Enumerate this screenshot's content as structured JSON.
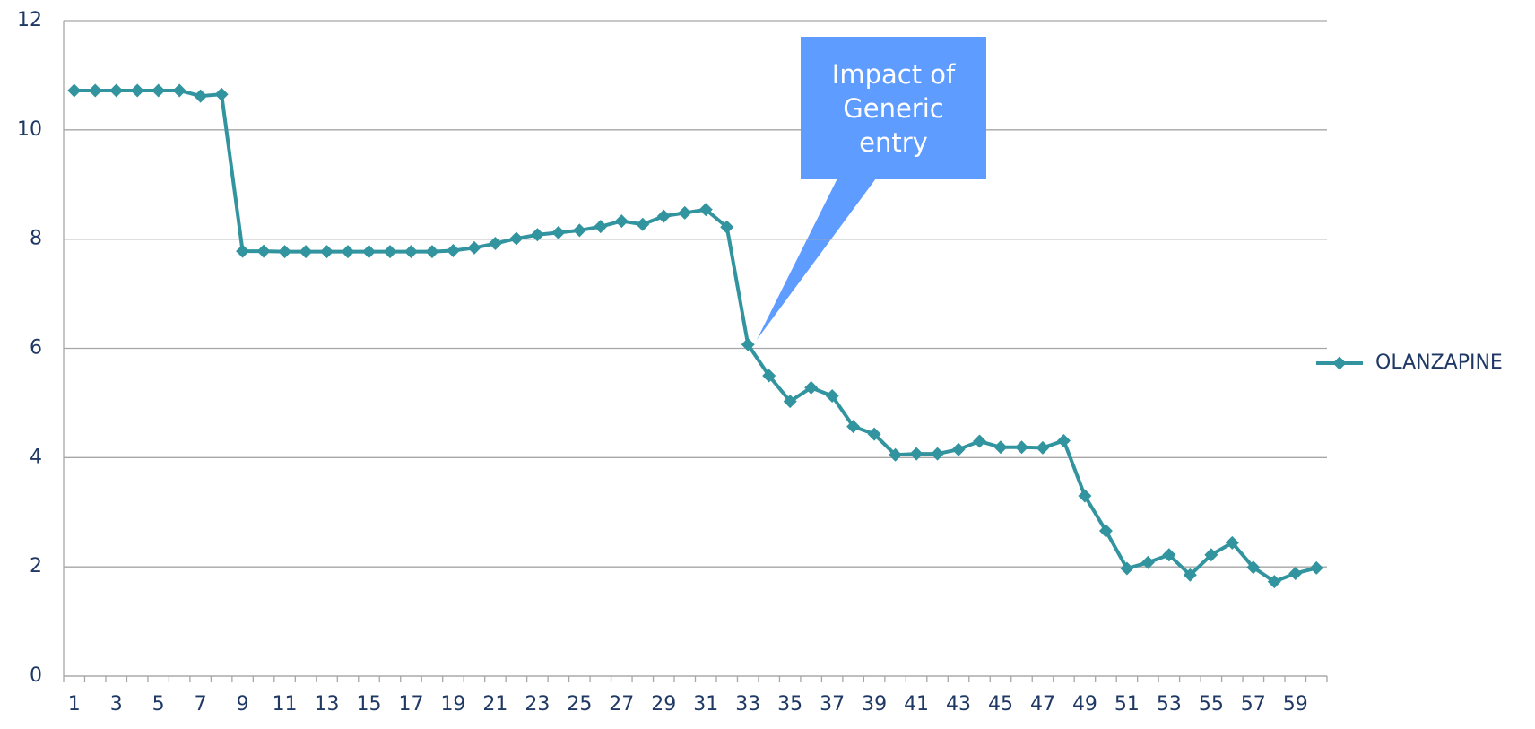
{
  "chart_data": {
    "type": "line",
    "categories": [
      1,
      null,
      3,
      null,
      5,
      null,
      7,
      null,
      9,
      null,
      11,
      null,
      13,
      null,
      15,
      null,
      17,
      null,
      19,
      null,
      21,
      null,
      23,
      null,
      25,
      null,
      27,
      null,
      29,
      null,
      31,
      null,
      33,
      null,
      35,
      null,
      37,
      null,
      39,
      null,
      41,
      null,
      43,
      null,
      45,
      null,
      47,
      null,
      49,
      null,
      51,
      null,
      53,
      null,
      55,
      null,
      57,
      null,
      59,
      null
    ],
    "series": [
      {
        "name": "OLANZAPINE",
        "color": "#31949f",
        "values": [
          10.72,
          10.72,
          10.72,
          10.72,
          10.72,
          10.72,
          10.62,
          10.65,
          7.78,
          7.78,
          7.77,
          7.77,
          7.77,
          7.77,
          7.77,
          7.77,
          7.77,
          7.77,
          7.79,
          7.84,
          7.92,
          8.01,
          8.08,
          8.12,
          8.16,
          8.23,
          8.33,
          8.27,
          8.42,
          8.48,
          8.54,
          8.22,
          6.07,
          5.5,
          5.03,
          5.28,
          5.13,
          4.57,
          4.43,
          4.05,
          4.07,
          4.07,
          4.15,
          4.3,
          4.19,
          4.19,
          4.18,
          4.31,
          3.3,
          2.66,
          1.97,
          2.08,
          2.22,
          1.85,
          2.22,
          2.44,
          1.99,
          1.73,
          1.88,
          1.98
        ]
      }
    ],
    "ylim": [
      0,
      12
    ],
    "yticks": [
      0,
      2,
      4,
      6,
      8,
      10,
      12
    ],
    "grid": true,
    "legend": "right",
    "annotation": "Impact of Generic entry",
    "annotation_color": "#5f9cff"
  }
}
